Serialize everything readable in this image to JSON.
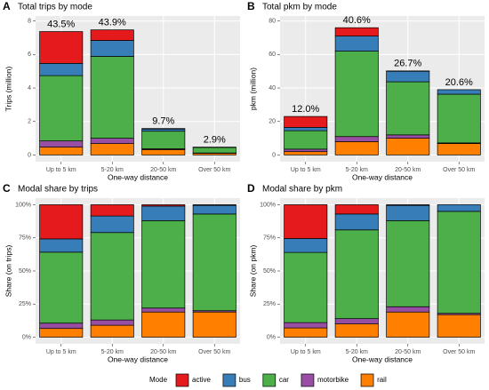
{
  "chart_data": [
    {
      "type": "bar",
      "stacked": true,
      "label": "A",
      "title": "Total trips by mode",
      "xlabel": "One-way distance",
      "ylabel": "Trips (million)",
      "categories": [
        "Up to 5 km",
        "5-20 km",
        "20-50 km",
        "Over 50 km"
      ],
      "series": [
        {
          "name": "active",
          "color": "#e41a1c",
          "values": [
            1.9,
            0.63,
            0.03,
            0
          ]
        },
        {
          "name": "bus",
          "color": "#377eb8",
          "values": [
            0.73,
            0.95,
            0.13,
            0.02
          ]
        },
        {
          "name": "car",
          "color": "#4daf4a",
          "values": [
            3.9,
            4.89,
            1.05,
            0.33
          ]
        },
        {
          "name": "motorbike",
          "color": "#984ea3",
          "values": [
            0.37,
            0.32,
            0.05,
            0.02
          ]
        },
        {
          "name": "rail",
          "color": "#ff7f00",
          "values": [
            0.47,
            0.68,
            0.32,
            0.1
          ]
        }
      ],
      "share_of_total": {
        "values": [
          43.5,
          43.9,
          9.7,
          2.9
        ],
        "value_labels": [
          "43.5%",
          "43.9%",
          "9.7%",
          "2.9%"
        ]
      },
      "ylim": [
        -0.4,
        8.3
      ],
      "yticks": [
        0,
        2,
        4,
        6,
        8
      ],
      "grid": true,
      "legend_title": "Mode"
    },
    {
      "type": "bar",
      "stacked": true,
      "label": "B",
      "title": "Total pkm by mode",
      "xlabel": "One-way distance",
      "ylabel": "pkm (million)",
      "categories": [
        "Up to 5 km",
        "5-20 km",
        "20-50 km",
        "Over 50 km"
      ],
      "series": [
        {
          "name": "active",
          "color": "#e41a1c",
          "values": [
            6.5,
            5,
            0.2,
            0
          ]
        },
        {
          "name": "bus",
          "color": "#377eb8",
          "values": [
            2,
            9,
            6.3,
            2.7
          ]
        },
        {
          "name": "car",
          "color": "#4daf4a",
          "values": [
            11,
            51,
            31.7,
            29.1
          ]
        },
        {
          "name": "motorbike",
          "color": "#984ea3",
          "values": [
            1.5,
            3,
            2,
            0.4
          ]
        },
        {
          "name": "rail",
          "color": "#ff7f00",
          "values": [
            2,
            8,
            10,
            6.8
          ]
        }
      ],
      "share_of_total": {
        "values": [
          12.0,
          40.6,
          26.7,
          20.6
        ],
        "value_labels": [
          "12.0%",
          "40.6%",
          "26.7%",
          "20.6%"
        ]
      },
      "ylim": [
        -4,
        83
      ],
      "yticks": [
        0,
        20,
        40,
        60,
        80
      ],
      "grid": true
    },
    {
      "type": "bar",
      "stacked": true,
      "label": "C",
      "title": "Modal share by trips",
      "xlabel": "One-way distance",
      "ylabel": "Share (on trips)",
      "categories": [
        "Up to 5 km",
        "5-20 km",
        "20-50 km",
        "Over 50 km"
      ],
      "series": [
        {
          "name": "active",
          "color": "#e41a1c",
          "values": [
            25.8,
            8.5,
            1,
            0.5
          ]
        },
        {
          "name": "bus",
          "color": "#377eb8",
          "values": [
            10,
            12.5,
            11,
            6.5
          ]
        },
        {
          "name": "car",
          "color": "#4daf4a",
          "values": [
            53.6,
            66,
            66,
            73
          ]
        },
        {
          "name": "motorbike",
          "color": "#984ea3",
          "values": [
            4,
            4,
            3,
            1
          ]
        },
        {
          "name": "rail",
          "color": "#ff7f00",
          "values": [
            6.6,
            9,
            19,
            19
          ]
        }
      ],
      "ylim": [
        -5,
        105
      ],
      "yticks": [
        {
          "value": 0,
          "label": "0%"
        },
        {
          "value": 25,
          "label": "25%"
        },
        {
          "value": 50,
          "label": "50%"
        },
        {
          "value": 75,
          "label": "75%"
        },
        {
          "value": 100,
          "label": "100%"
        }
      ],
      "grid": true
    },
    {
      "type": "bar",
      "stacked": true,
      "label": "D",
      "title": "Modal share by pkm",
      "xlabel": "One-way distance",
      "ylabel": "Share (on pkm)",
      "categories": [
        "Up to 5 km",
        "5-20 km",
        "20-50 km",
        "Over 50 km"
      ],
      "series": [
        {
          "name": "active",
          "color": "#e41a1c",
          "values": [
            25.5,
            7,
            0.5,
            0
          ]
        },
        {
          "name": "bus",
          "color": "#377eb8",
          "values": [
            10.5,
            12,
            11.5,
            5
          ]
        },
        {
          "name": "car",
          "color": "#4daf4a",
          "values": [
            53,
            67,
            65,
            77
          ]
        },
        {
          "name": "motorbike",
          "color": "#984ea3",
          "values": [
            4,
            4,
            4,
            1
          ]
        },
        {
          "name": "rail",
          "color": "#ff7f00",
          "values": [
            7,
            10,
            19,
            17
          ]
        }
      ],
      "ylim": [
        -5,
        105
      ],
      "yticks": [
        {
          "value": 0,
          "label": "0%"
        },
        {
          "value": 25,
          "label": "25%"
        },
        {
          "value": 50,
          "label": "50%"
        },
        {
          "value": 75,
          "label": "75%"
        },
        {
          "value": 100,
          "label": "100%"
        }
      ],
      "grid": true
    }
  ]
}
